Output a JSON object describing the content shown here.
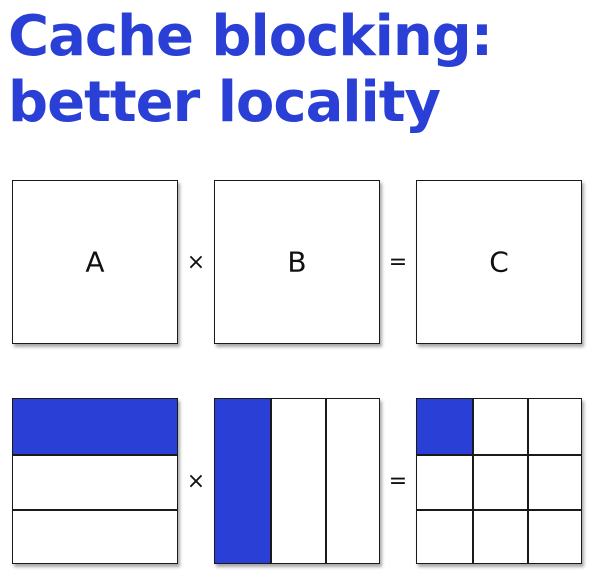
{
  "title": {
    "line1": "Cache blocking:",
    "line2": "better locality"
  },
  "top_row": {
    "a_label": "A",
    "b_label": "B",
    "c_label": "C",
    "times": "×",
    "equals": "="
  },
  "bottom_row": {
    "times": "×",
    "equals": "="
  },
  "colors": {
    "accent": "#2a3fd6",
    "border": "#1a1a1a"
  }
}
